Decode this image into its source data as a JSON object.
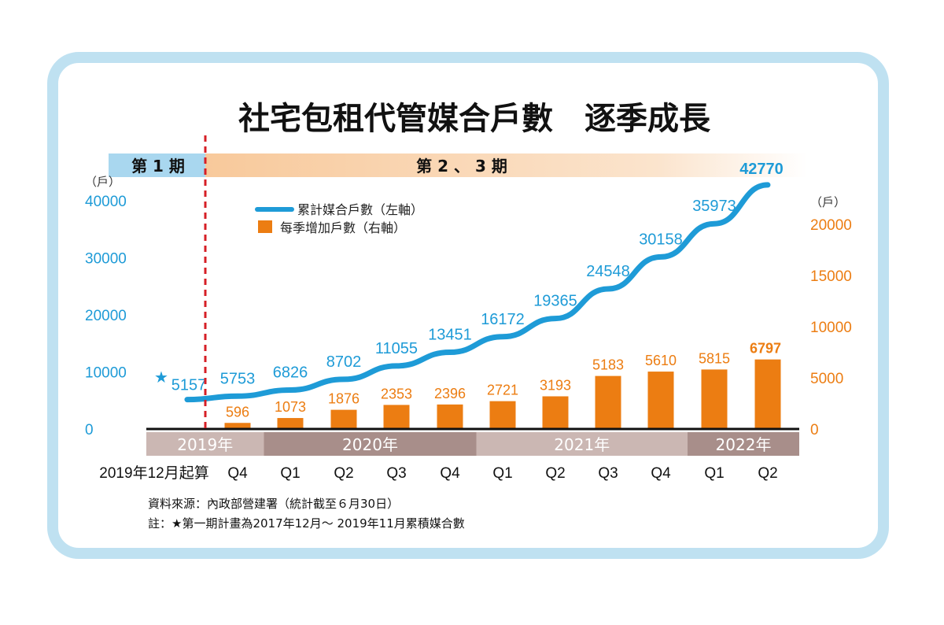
{
  "title": "社宅包租代管媒合戶數　逐季成長",
  "phases": [
    {
      "label": "第 1 期"
    },
    {
      "label": "第 2 、 3 期"
    }
  ],
  "legend": {
    "line": "累計媒合戶數（左軸）",
    "bar": "每季增加戶數（右軸）"
  },
  "axis": {
    "left_unit": "（戶）",
    "right_unit": "（戶）",
    "first_category_label": "2019年12月起算"
  },
  "years": [
    {
      "label": "2019年",
      "span": [
        0,
        1
      ],
      "color": "#cbb7b3"
    },
    {
      "label": "2020年",
      "span": [
        2,
        5
      ],
      "color": "#a88e8a"
    },
    {
      "label": "2021年",
      "span": [
        6,
        9
      ],
      "color": "#cbb7b3"
    },
    {
      "label": "2022年",
      "span": [
        10,
        11
      ],
      "color": "#a88e8a"
    }
  ],
  "source": "資料來源：內政部營建署（統計截至６月30日）",
  "note": "註：★第一期計畫為2017年12月～ 2019年11月累積媒合數",
  "colors": {
    "line": "#1e9bd7",
    "bar": "#ec7d12",
    "phase1": "#a9d7ef",
    "phase2": "#f8c99b",
    "divider": "#d61f26"
  },
  "chart_data": {
    "type": "bar+line",
    "categories": [
      "2019年12月起算",
      "Q4",
      "Q1",
      "Q2",
      "Q3",
      "Q4",
      "Q1",
      "Q2",
      "Q3",
      "Q4",
      "Q1",
      "Q2"
    ],
    "series": [
      {
        "name": "累計媒合戶數（左軸）",
        "type": "line",
        "axis": "left",
        "values": [
          5157,
          5753,
          6826,
          8702,
          11055,
          13451,
          16172,
          19365,
          24548,
          30158,
          35973,
          42770
        ]
      },
      {
        "name": "每季增加戶數（右軸）",
        "type": "bar",
        "axis": "right",
        "values": [
          null,
          596,
          1073,
          1876,
          2353,
          2396,
          2721,
          3193,
          5183,
          5610,
          5815,
          6797
        ]
      }
    ],
    "left_axis": {
      "ticks": [
        0,
        10000,
        20000,
        30000,
        40000
      ],
      "ylim": [
        0,
        40000
      ]
    },
    "right_axis": {
      "ticks": [
        0,
        5000,
        10000,
        15000,
        20000
      ],
      "ylim": [
        0,
        20000
      ]
    },
    "annotations": [
      "★"
    ]
  }
}
